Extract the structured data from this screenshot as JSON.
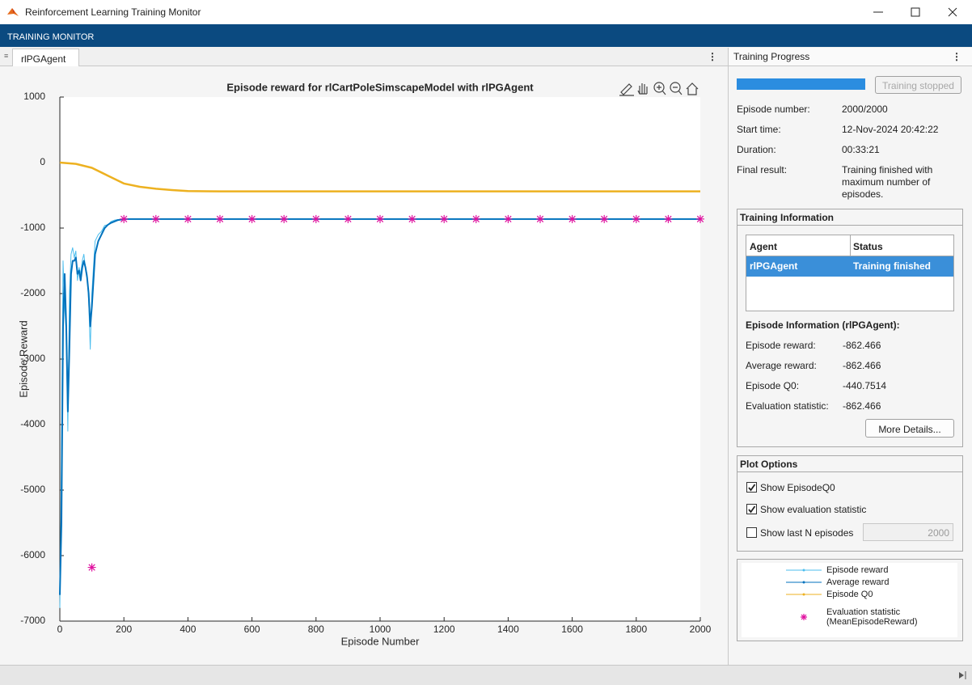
{
  "window": {
    "title": "Reinforcement Learning Training Monitor",
    "toolstrip": "TRAINING MONITOR",
    "document_tab": "rlPGAgent"
  },
  "progress_panel": {
    "title": "Training Progress",
    "button": "Training stopped",
    "fields": [
      {
        "label": "Episode number:",
        "value": "2000/2000"
      },
      {
        "label": "Start time:",
        "value": "12-Nov-2024 20:42:22"
      },
      {
        "label": "Duration:",
        "value": "00:33:21"
      },
      {
        "label": "Final result:",
        "value": "Training finished with maximum number of episodes."
      }
    ]
  },
  "training_information": {
    "title": "Training Information",
    "table": {
      "columns": [
        "Agent",
        "Status"
      ],
      "rows": [
        [
          "rlPGAgent",
          "Training finished"
        ]
      ]
    },
    "episode_info_title": "Episode Information (rlPGAgent):",
    "fields": [
      {
        "label": "Episode reward:",
        "value": -862.466
      },
      {
        "label": "Average reward:",
        "value": -862.466
      },
      {
        "label": "Episode Q0:",
        "value": -440.7514
      },
      {
        "label": "Evaluation statistic:",
        "value": -862.466
      }
    ],
    "button": "More Details..."
  },
  "plot_options": {
    "title": "Plot Options",
    "options": [
      {
        "label": "Show EpisodeQ0",
        "checked": true
      },
      {
        "label": "Show evaluation statistic",
        "checked": true
      },
      {
        "label": "Show last N episodes",
        "checked": false,
        "input": 2000
      }
    ]
  },
  "chart_data": {
    "type": "line",
    "title": "Episode reward for rlCartPoleSimscapeModel with rlPGAgent",
    "x_label": "Episode Number",
    "y_label": "Episode Reward",
    "xlim": [
      0,
      2000
    ],
    "ylim": [
      -7000,
      1000
    ],
    "xticks": [
      0,
      200,
      400,
      600,
      800,
      1000,
      1200,
      1400,
      1600,
      1800,
      2000
    ],
    "yticks": [
      -7000,
      -6000,
      -5000,
      -4000,
      -3000,
      -2000,
      -1000,
      0,
      1000
    ],
    "series": [
      {
        "name": "Episode reward",
        "color": "#4dbeee",
        "mode": "lines",
        "width": 1,
        "x": [
          0,
          5,
          10,
          15,
          20,
          25,
          30,
          35,
          40,
          45,
          50,
          55,
          60,
          65,
          70,
          75,
          80,
          85,
          90,
          95,
          100,
          110,
          120,
          130,
          140,
          150,
          160,
          170,
          180,
          190,
          200,
          400,
          600,
          800,
          1000,
          1200,
          1400,
          1600,
          1800,
          2000
        ],
        "values": [
          -6800,
          -4500,
          -1500,
          -2200,
          -2600,
          -4100,
          -2000,
          -1400,
          -1300,
          -1450,
          -1350,
          -1800,
          -1600,
          -1700,
          -1500,
          -1400,
          -1600,
          -1700,
          -2100,
          -2850,
          -2000,
          -1200,
          -1100,
          -1050,
          -960,
          -950,
          -900,
          -880,
          -870,
          -880,
          -862,
          -862,
          -862,
          -862,
          -862,
          -862,
          -862,
          -862,
          -862,
          -862
        ]
      },
      {
        "name": "Average reward",
        "color": "#0072bd",
        "mode": "lines",
        "width": 2,
        "x": [
          0,
          5,
          10,
          15,
          20,
          25,
          30,
          35,
          40,
          45,
          50,
          55,
          60,
          65,
          70,
          75,
          80,
          85,
          90,
          95,
          100,
          110,
          120,
          130,
          140,
          150,
          160,
          170,
          180,
          190,
          200,
          400,
          600,
          800,
          1000,
          1200,
          1400,
          1600,
          1800,
          2000
        ],
        "values": [
          -6600,
          -5500,
          -2500,
          -1700,
          -2500,
          -3800,
          -2800,
          -1700,
          -1500,
          -1500,
          -1450,
          -1700,
          -1650,
          -1800,
          -1600,
          -1500,
          -1600,
          -1750,
          -2000,
          -2500,
          -2200,
          -1400,
          -1200,
          -1100,
          -1000,
          -950,
          -920,
          -900,
          -880,
          -870,
          -862,
          -862,
          -862,
          -862,
          -862,
          -862,
          -862,
          -862,
          -862,
          -862
        ]
      },
      {
        "name": "Episode Q0",
        "color": "#edb120",
        "mode": "lines",
        "width": 2.5,
        "x": [
          0,
          50,
          100,
          150,
          200,
          250,
          300,
          350,
          400,
          500,
          2000
        ],
        "values": [
          0,
          -20,
          -80,
          -200,
          -320,
          -370,
          -400,
          -420,
          -435,
          -440,
          -440
        ]
      },
      {
        "name": "Evaluation statistic (MeanEpisodeReward)",
        "color": "#e0119f",
        "mode": "markers",
        "width": 1.2,
        "x": [
          100,
          200,
          300,
          400,
          500,
          600,
          700,
          800,
          900,
          1000,
          1100,
          1200,
          1300,
          1400,
          1500,
          1600,
          1700,
          1800,
          1900,
          2000
        ],
        "values": [
          -6180,
          -862,
          -862,
          -862,
          -862,
          -862,
          -862,
          -862,
          -862,
          -862,
          -862,
          -862,
          -862,
          -862,
          -862,
          -862,
          -862,
          -862,
          -862,
          -862
        ]
      }
    ]
  }
}
